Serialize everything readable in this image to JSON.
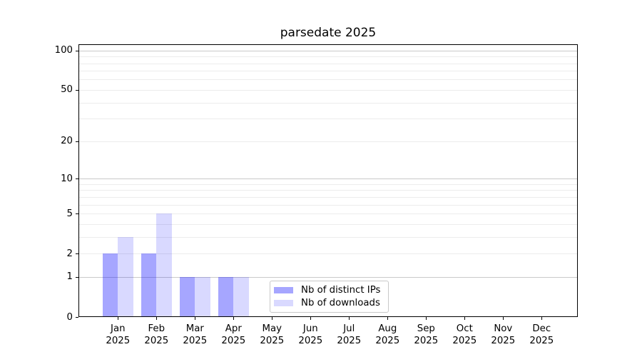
{
  "chart_data": {
    "type": "bar",
    "title": "parsedate 2025",
    "x_tick_months": [
      "Jan",
      "Feb",
      "Mar",
      "Apr",
      "May",
      "Jun",
      "Jul",
      "Aug",
      "Sep",
      "Oct",
      "Nov",
      "Dec"
    ],
    "x_tick_year": "2025",
    "y_ticks": [
      0,
      1,
      2,
      5,
      10,
      20,
      50,
      100
    ],
    "y_scale": "log1p",
    "ylim": [
      0,
      100
    ],
    "y_major_gridlines": [
      1,
      10,
      100
    ],
    "y_minor_gridlines": [
      2,
      3,
      4,
      5,
      6,
      7,
      8,
      9,
      20,
      30,
      40,
      50,
      60,
      70,
      80,
      90
    ],
    "series": [
      {
        "name": "Nb of distinct IPs",
        "color": "#a6a6ff",
        "fill_rgba": "rgba(0,0,255,0.35)",
        "values": [
          2,
          2,
          1,
          1,
          0,
          0,
          0,
          0,
          0,
          0,
          0,
          0
        ]
      },
      {
        "name": "Nb of downloads",
        "color": "#d9d9ff",
        "fill_rgba": "rgba(0,0,255,0.15)",
        "values": [
          3,
          5,
          1,
          1,
          0,
          0,
          0,
          0,
          0,
          0,
          0,
          0
        ]
      }
    ],
    "legend": {
      "items": [
        "Nb of distinct IPs",
        "Nb of downloads"
      ],
      "position": "lower center"
    }
  },
  "colors": {
    "background": "#ffffff",
    "spine": "#000000",
    "major_grid": "#c9c9c9",
    "minor_grid": "#ececec",
    "legend_border": "#c8c8c8",
    "text": "#000000"
  }
}
